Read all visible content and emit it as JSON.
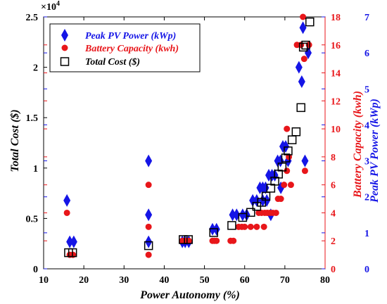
{
  "chart_data": {
    "type": "scatter",
    "xlabel": "Power Autonomy (%)",
    "xlim": [
      10,
      80
    ],
    "xticks": [
      10,
      20,
      30,
      40,
      50,
      60,
      70,
      80
    ],
    "y_axes": {
      "left": {
        "label": "Total Cost ($)",
        "lim": [
          0,
          2.5
        ],
        "ticks": [
          0,
          0.5,
          1,
          1.5,
          2,
          2.5
        ],
        "tick_labels": [
          "0",
          "0.5",
          "1",
          "1.5",
          "2",
          "2.5"
        ],
        "multiplier": "×10^4",
        "multiplier_base": "×10",
        "multiplier_exp": "4",
        "color": "#000000"
      },
      "right1": {
        "label": "Battery Capacity (kwh)",
        "lim": [
          0,
          18
        ],
        "ticks": [
          0,
          2,
          4,
          6,
          8,
          10,
          12,
          14,
          16,
          18
        ],
        "tick_labels": [
          "0",
          "2",
          "4",
          "6",
          "8",
          "10",
          "12",
          "14",
          "16",
          "18"
        ],
        "color": "#e8161a"
      },
      "right2": {
        "label": "Peak PV Power (kWp)",
        "lim": [
          0,
          7
        ],
        "ticks": [
          0,
          1,
          2,
          3,
          4,
          5,
          6,
          7
        ],
        "tick_labels": [
          "0",
          "1",
          "2",
          "3",
          "4",
          "5",
          "6",
          "7"
        ],
        "color": "#1515e6"
      }
    },
    "legend": {
      "placement": "top-left",
      "entries": [
        "Peak PV Power (kWp)",
        "Battery Capacity (kwh)",
        "Total Cost ($)"
      ]
    },
    "grid": false,
    "series": [
      {
        "name": "Peak PV Power (kWp)",
        "axis": "right2",
        "color": "#1515e6",
        "marker": "diamond",
        "points": [
          [
            15.8,
            1.9
          ],
          [
            16.5,
            0.75
          ],
          [
            17.5,
            0.75
          ],
          [
            36.1,
            3.0
          ],
          [
            36.1,
            1.5
          ],
          [
            36.1,
            0.75
          ],
          [
            44.5,
            0.75
          ],
          [
            45.2,
            0.75
          ],
          [
            46.1,
            0.75
          ],
          [
            52.0,
            1.1
          ],
          [
            53.0,
            1.1
          ],
          [
            57.0,
            1.5
          ],
          [
            58.0,
            1.5
          ],
          [
            59.5,
            1.5
          ],
          [
            60.5,
            1.5
          ],
          [
            62.0,
            1.9
          ],
          [
            63.0,
            1.9
          ],
          [
            63.8,
            2.25
          ],
          [
            64.5,
            2.25
          ],
          [
            65.2,
            2.25
          ],
          [
            66.0,
            2.6
          ],
          [
            66.8,
            2.6
          ],
          [
            67.5,
            2.6
          ],
          [
            64.5,
            1.9
          ],
          [
            65.5,
            1.9
          ],
          [
            68.2,
            3.0
          ],
          [
            68.9,
            3.0
          ],
          [
            69.5,
            3.4
          ],
          [
            70.2,
            3.4
          ],
          [
            70.8,
            3.0
          ],
          [
            66.5,
            1.5
          ],
          [
            69.0,
            2.25
          ],
          [
            73.5,
            5.6
          ],
          [
            74.2,
            5.2
          ],
          [
            74.5,
            6.7
          ],
          [
            75.0,
            3.0
          ],
          [
            75.8,
            6.0
          ]
        ]
      },
      {
        "name": "Battery Capacity (kwh)",
        "axis": "right1",
        "color": "#e8161a",
        "marker": "circle",
        "points": [
          [
            15.8,
            4.0
          ],
          [
            16.5,
            1.0
          ],
          [
            17.3,
            1.0
          ],
          [
            36.1,
            6.0
          ],
          [
            36.1,
            3.0
          ],
          [
            36.1,
            1.0
          ],
          [
            44.5,
            2.0
          ],
          [
            45.2,
            2.0
          ],
          [
            46.1,
            2.0
          ],
          [
            52.0,
            2.0
          ],
          [
            52.5,
            2.0
          ],
          [
            53.0,
            2.0
          ],
          [
            56.5,
            2.0
          ],
          [
            57.2,
            2.0
          ],
          [
            58.5,
            3.0
          ],
          [
            59.3,
            3.0
          ],
          [
            60.0,
            3.0
          ],
          [
            61.5,
            3.0
          ],
          [
            63.0,
            3.0
          ],
          [
            63.5,
            4.0
          ],
          [
            64.2,
            4.0
          ],
          [
            64.8,
            3.0
          ],
          [
            65.0,
            4.0
          ],
          [
            65.6,
            4.0
          ],
          [
            66.3,
            4.0
          ],
          [
            67.0,
            4.0
          ],
          [
            67.8,
            4.0
          ],
          [
            68.3,
            5.0
          ],
          [
            69.0,
            5.0
          ],
          [
            69.8,
            6.0
          ],
          [
            70.5,
            7.0
          ],
          [
            71.0,
            8.0
          ],
          [
            70.5,
            10.0
          ],
          [
            71.5,
            6.0
          ],
          [
            73.0,
            16.0
          ],
          [
            74.0,
            16.0
          ],
          [
            74.5,
            18.0
          ],
          [
            75.0,
            7.0
          ],
          [
            76.0,
            16.0
          ],
          [
            74.8,
            15.0
          ]
        ]
      },
      {
        "name": "Total Cost ($)",
        "axis": "left",
        "color": "#000000",
        "marker": "square",
        "points": [
          [
            16.2,
            0.16
          ],
          [
            17.2,
            0.16
          ],
          [
            36.1,
            0.23
          ],
          [
            44.7,
            0.29
          ],
          [
            46.0,
            0.29
          ],
          [
            52.3,
            0.36
          ],
          [
            56.8,
            0.43
          ],
          [
            59.5,
            0.51
          ],
          [
            61.5,
            0.56
          ],
          [
            63.0,
            0.62
          ],
          [
            64.2,
            0.66
          ],
          [
            65.3,
            0.72
          ],
          [
            66.5,
            0.8
          ],
          [
            67.5,
            0.87
          ],
          [
            68.4,
            0.94
          ],
          [
            69.3,
            1.01
          ],
          [
            70.2,
            1.1
          ],
          [
            70.8,
            1.17
          ],
          [
            71.8,
            1.28
          ],
          [
            72.8,
            1.36
          ],
          [
            74.0,
            1.6
          ],
          [
            74.6,
            2.2
          ],
          [
            75.2,
            2.22
          ],
          [
            76.2,
            2.45
          ]
        ]
      }
    ]
  }
}
